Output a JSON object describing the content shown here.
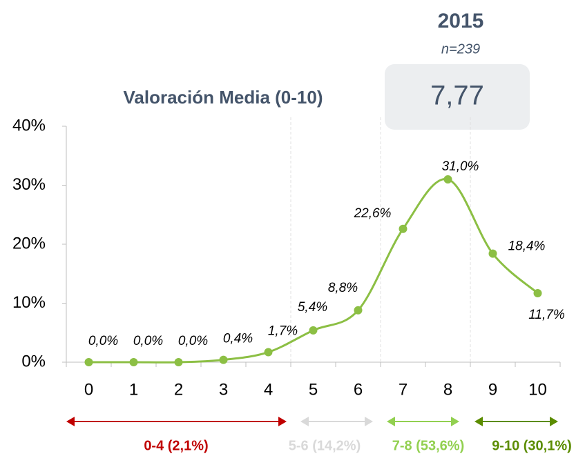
{
  "chart_data": {
    "type": "line",
    "title": "Valoración Media (0-10)",
    "year": "2015",
    "sample": "n=239",
    "mean": "7,77",
    "categories": [
      "0",
      "1",
      "2",
      "3",
      "4",
      "5",
      "6",
      "7",
      "8",
      "9",
      "10"
    ],
    "values": [
      0.0,
      0.0,
      0.0,
      0.4,
      1.7,
      5.4,
      8.8,
      22.6,
      31.0,
      18.4,
      11.7
    ],
    "value_labels": [
      "0,0%",
      "0,0%",
      "0,0%",
      "0,4%",
      "1,7%",
      "5,4%",
      "8,8%",
      "22,6%",
      "31,0%",
      "18,4%",
      "11,7%"
    ],
    "color": "#8cbf44",
    "ylim": [
      0,
      40
    ],
    "yticks": [
      {
        "value": 0,
        "label": "0%"
      },
      {
        "value": 10,
        "label": "10%"
      },
      {
        "value": 20,
        "label": "20%"
      },
      {
        "value": 30,
        "label": "30%"
      },
      {
        "value": 40,
        "label": "40%"
      }
    ],
    "grid": false,
    "groups": [
      {
        "label": "0-4 (2,1%)",
        "color": "#c00000"
      },
      {
        "label": "5-6 (14,2%)",
        "color": "#d9d9d9"
      },
      {
        "label": "7-8 (53,6%)",
        "color": "#92d050"
      },
      {
        "label": "9-10 (30,1%)",
        "color": "#5b8c00"
      }
    ]
  }
}
